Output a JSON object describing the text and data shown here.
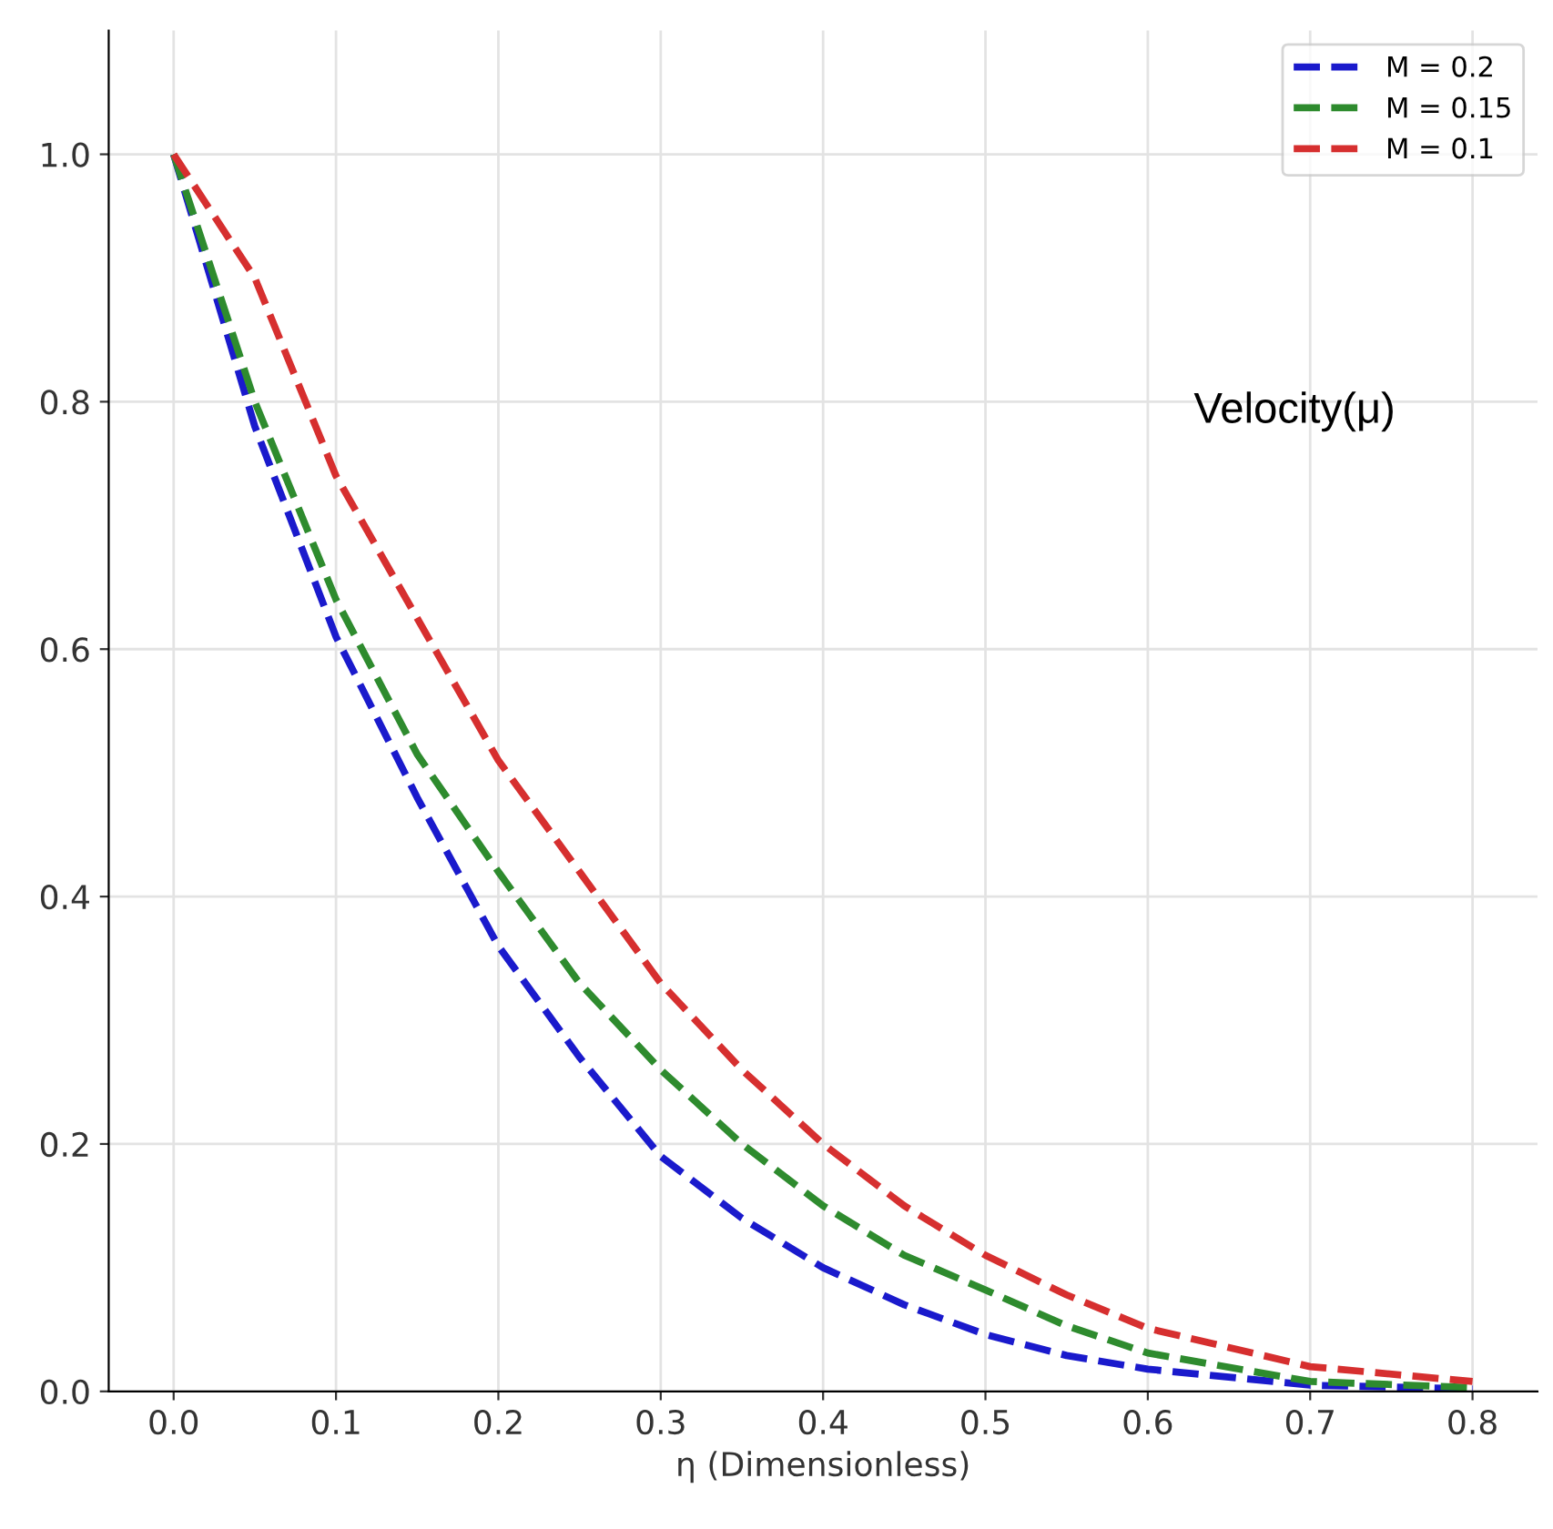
{
  "chart_data": {
    "type": "line",
    "xlabel": "η (Dimensionless)",
    "annotations": [
      "Velocity(μ)"
    ],
    "x": [
      0,
      0.05,
      0.1,
      0.15,
      0.2,
      0.25,
      0.3,
      0.35,
      0.4,
      0.45,
      0.5,
      0.55,
      0.6,
      0.7,
      0.8
    ],
    "series": [
      {
        "name": "M = 0.2",
        "color": "#1a1acc",
        "values": [
          1.0,
          0.78,
          0.61,
          0.48,
          0.36,
          0.27,
          0.19,
          0.14,
          0.1,
          0.07,
          0.046,
          0.029,
          0.018,
          0.005,
          0.002
        ]
      },
      {
        "name": "M = 0.15",
        "color": "#2e8b2e",
        "values": [
          1.0,
          0.8,
          0.64,
          0.515,
          0.42,
          0.33,
          0.26,
          0.2,
          0.15,
          0.11,
          0.082,
          0.053,
          0.031,
          0.008,
          0.003
        ]
      },
      {
        "name": "M = 0.1",
        "color": "#d62f2f",
        "values": [
          1.0,
          0.9,
          0.74,
          0.625,
          0.51,
          0.42,
          0.33,
          0.26,
          0.2,
          0.15,
          0.11,
          0.078,
          0.051,
          0.02,
          0.008
        ]
      }
    ],
    "xlim": [
      -0.04,
      0.84
    ],
    "ylim": [
      0,
      1.1
    ],
    "xticks": [
      {
        "value": 0,
        "label": "0.0"
      },
      0.1,
      0.2,
      0.3,
      0.4,
      0.5,
      0.6,
      0.7,
      0.8
    ],
    "yticks": [
      {
        "value": 0,
        "label": "0.0"
      },
      0.2,
      0.4,
      0.6,
      0.8,
      {
        "value": 1,
        "label": "1.0"
      }
    ],
    "grid": true,
    "legend": "top right",
    "line_style": "dashed",
    "marker": "none"
  }
}
